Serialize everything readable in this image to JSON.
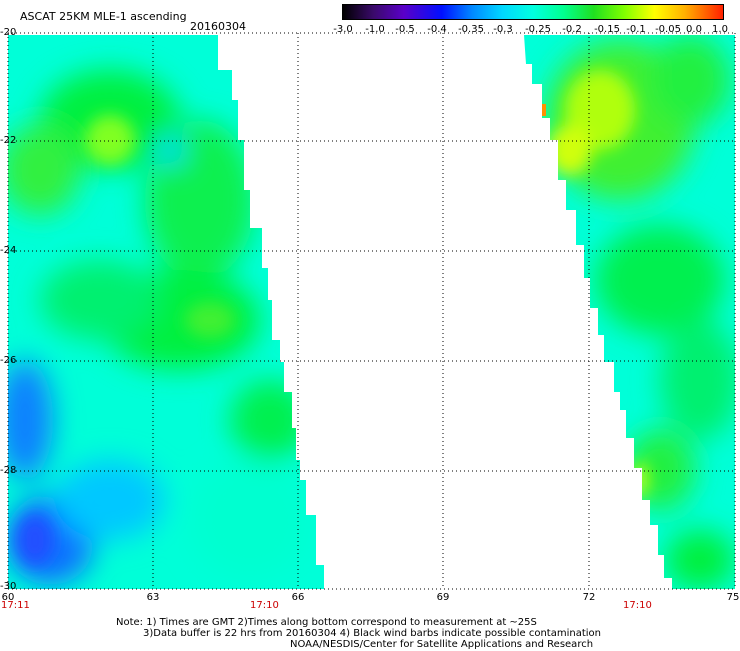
{
  "header": {
    "title": "ASCAT 25KM MLE-1 ascending",
    "date": "20160304"
  },
  "colorbar": {
    "labels": [
      "-3.0",
      "-1.0",
      "-0.5",
      "-0.4",
      "-0.35",
      "-0.3",
      "-0.25",
      "-0.2",
      "-0.15",
      "-0.1",
      "-0.05",
      "0.0",
      "1.0"
    ]
  },
  "axes": {
    "lat_labels": [
      "-20",
      "-22",
      "-24",
      "-26",
      "-28",
      "-30"
    ],
    "lon_labels": [
      "60",
      "63",
      "66",
      "69",
      "72",
      "75"
    ]
  },
  "times": {
    "left": "17:11",
    "middle": "17:10",
    "right": "17:10",
    "color": "#cc0000"
  },
  "footer": {
    "line1": "Note: 1) Times are GMT 2)Times along bottom correspond to measurement at ~25S",
    "line2": "3)Data buffer is 22 hrs from 20160304 4) Black wind barbs indicate possible contamination",
    "line3": "NOAA/NESDIS/Center for Satellite Applications and Research"
  },
  "colors": {
    "swath_base": "#00ffd8",
    "green": "#00f040",
    "yellowgreen": "#a0ff10",
    "blue": "#2080ff",
    "orange": "#ff9000"
  }
}
